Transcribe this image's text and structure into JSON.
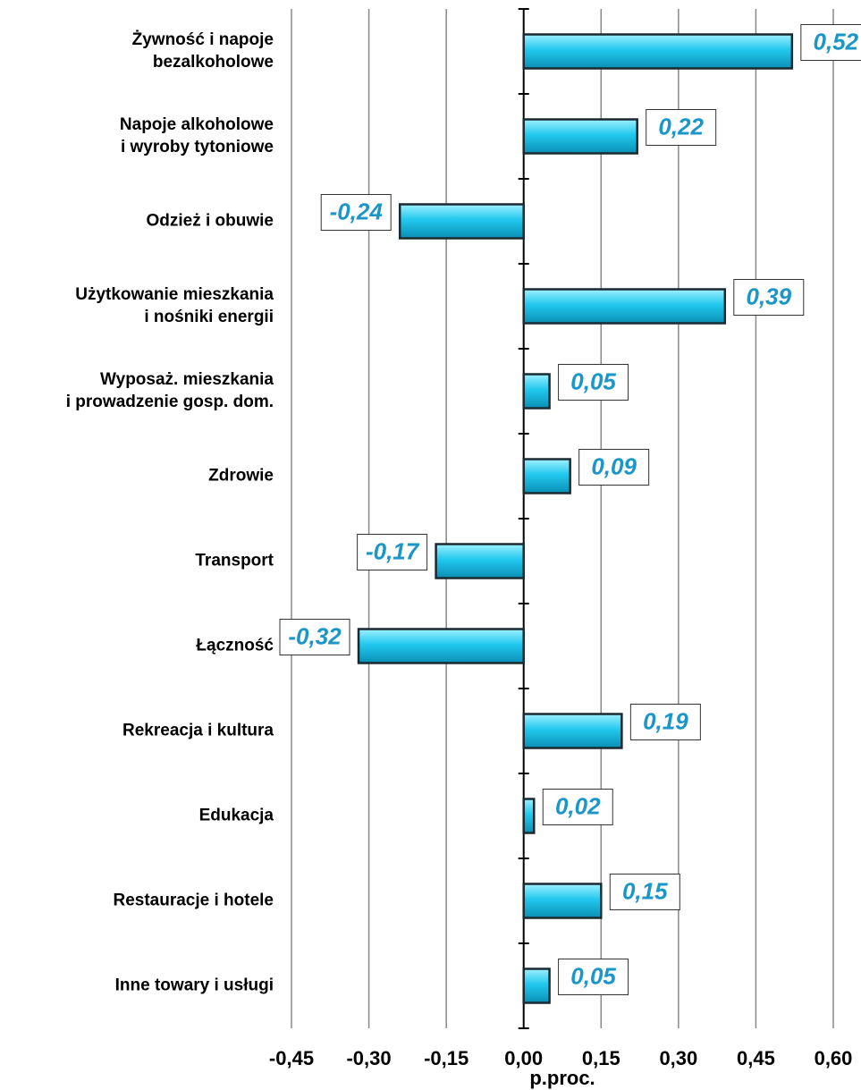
{
  "chart_data": {
    "type": "barh",
    "categories": [
      [
        "Żywność i napoje",
        "bezalkoholowe"
      ],
      [
        "Napoje alkoholowe",
        "i wyroby tytoniowe"
      ],
      [
        "Odzież i obuwie"
      ],
      [
        "Użytkowanie mieszkania",
        "i nośniki energii"
      ],
      [
        "Wyposaż. mieszkania",
        "i prowadzenie gosp. dom."
      ],
      [
        "Zdrowie"
      ],
      [
        "Transport"
      ],
      [
        "Łączność"
      ],
      [
        "Rekreacja i kultura"
      ],
      [
        "Edukacja"
      ],
      [
        "Restauracje i hotele"
      ],
      [
        "Inne towary i usługi"
      ]
    ],
    "values": [
      0.52,
      0.22,
      -0.24,
      0.39,
      0.05,
      0.09,
      -0.17,
      -0.32,
      0.19,
      0.02,
      0.15,
      0.05
    ],
    "value_labels": [
      "0,52",
      "0,22",
      "-0,24",
      "0,39",
      "0,05",
      "0,09",
      "-0,17",
      "-0,32",
      "0,19",
      "0,02",
      "0,15",
      "0,05"
    ],
    "color": "#22c8ee",
    "xlabel": "p.proc.",
    "xlim": [
      -0.45,
      0.6
    ],
    "xticks": [
      {
        "value": -0.45,
        "label": "-0,45"
      },
      {
        "value": -0.3,
        "label": "-0,30"
      },
      {
        "value": -0.15,
        "label": "-0,15"
      },
      {
        "value": 0,
        "label": "0,00"
      },
      {
        "value": 0.15,
        "label": "0,15"
      },
      {
        "value": 0.3,
        "label": "0,30"
      },
      {
        "value": 0.45,
        "label": "0,45"
      },
      {
        "value": 0.6,
        "label": "0,60"
      }
    ],
    "grid": true
  }
}
